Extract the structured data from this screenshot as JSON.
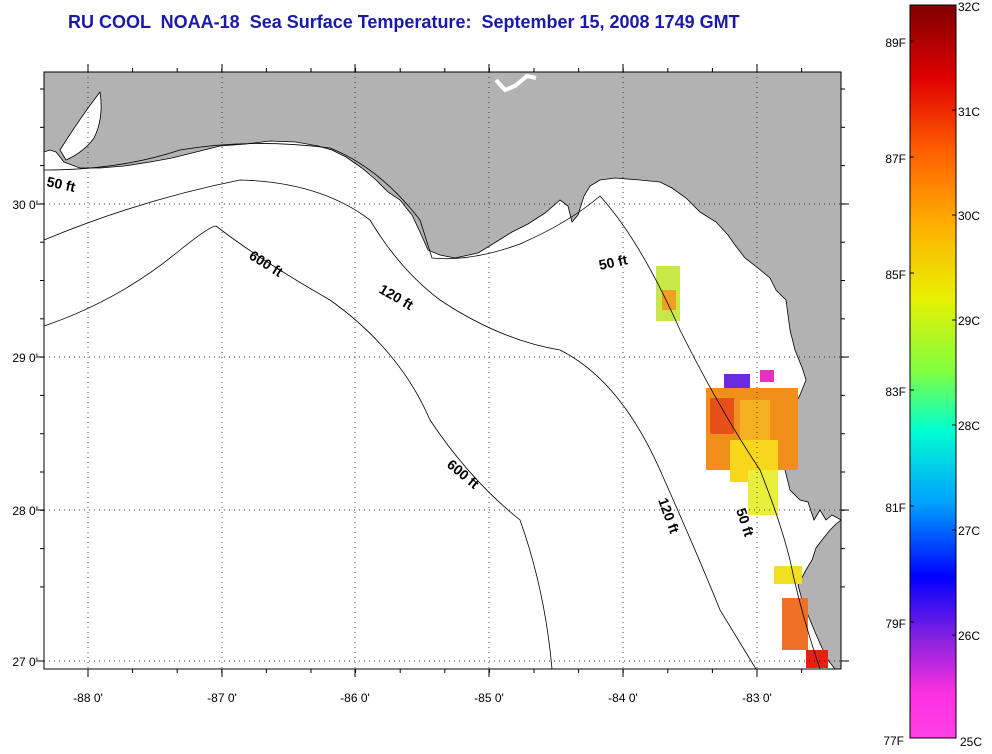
{
  "title": "RU COOL  NOAA-18  Sea Surface Temperature:  September 15, 2008 1749 GMT",
  "map": {
    "lon_ticks": [
      "-88 0'",
      "-87 0'",
      "-86 0'",
      "-85 0'",
      "-84 0'",
      "-83 0'"
    ],
    "lat_ticks": [
      "30 0'",
      "29 0'",
      "28 0'",
      "27 0'"
    ],
    "contours": {
      "c50_a": "50 ft",
      "c50_b": "50 ft",
      "c50_c": "50 ft",
      "c120_a": "120 ft",
      "c120_b": "120 ft",
      "c600_a": "600 ft",
      "c600_b": "600 ft"
    },
    "colors": {
      "land": "#b2b2b2",
      "title": "#1a1aa8",
      "contour": "#000000"
    }
  },
  "colorbar": {
    "celsius": [
      "32C",
      "31C",
      "30C",
      "29C",
      "28C",
      "27C",
      "26C",
      "25C"
    ],
    "fahrenheit": [
      "89F",
      "87F",
      "85F",
      "83F",
      "81F",
      "79F",
      "77F"
    ]
  }
}
